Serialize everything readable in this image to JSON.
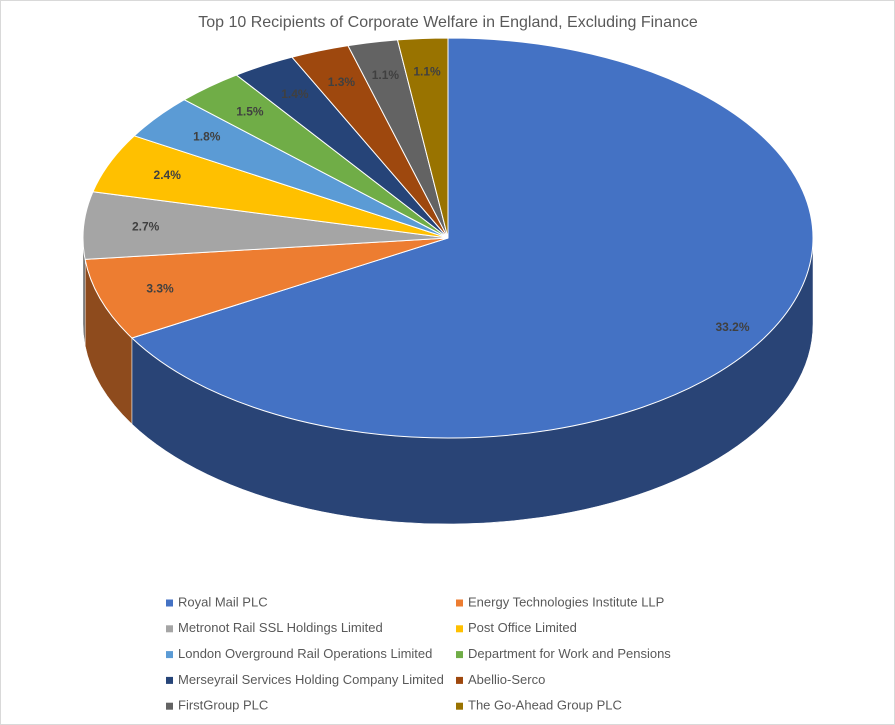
{
  "chart_data": {
    "type": "pie3d",
    "title": "Top 10 Recipients of Corporate Welfare in England, Excluding Finance",
    "categories": [
      "Royal Mail PLC",
      "Energy Technologies Institute LLP",
      "Metronot Rail SSL Holdings Limited",
      "Post Office Limited",
      "London Overground Rail Operations Limited",
      "Department for Work and Pensions",
      "Merseyrail Services Holding Company Limited",
      "Abellio-Serco",
      "FirstGroup PLC",
      "The Go-Ahead Group PLC"
    ],
    "values": [
      33.2,
      3.3,
      2.7,
      2.4,
      1.8,
      1.5,
      1.4,
      1.3,
      1.1,
      1.1
    ],
    "value_labels": [
      "33.2%",
      "3.3%",
      "2.7%",
      "2.4%",
      "1.8%",
      "1.5%",
      "1.4%",
      "1.3%",
      "1.1%",
      "1.1%"
    ],
    "colors": [
      "#4472c4",
      "#ed7d31",
      "#a5a5a5",
      "#ffc000",
      "#5b9bd5",
      "#70ad47",
      "#264478",
      "#9e480e",
      "#636363",
      "#997300"
    ],
    "legend": "bottom"
  }
}
